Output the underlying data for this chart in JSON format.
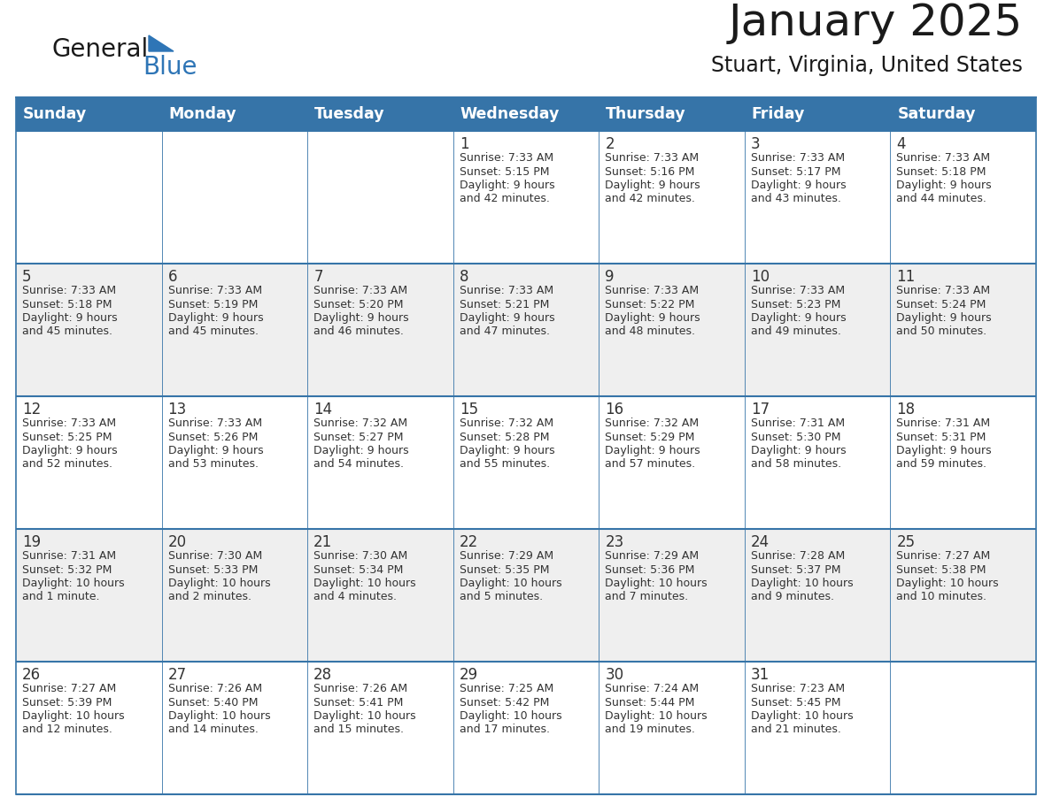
{
  "title": "January 2025",
  "subtitle": "Stuart, Virginia, United States",
  "days_of_week": [
    "Sunday",
    "Monday",
    "Tuesday",
    "Wednesday",
    "Thursday",
    "Friday",
    "Saturday"
  ],
  "header_bg": "#3674a8",
  "header_text": "#FFFFFF",
  "cell_bg_odd": "#FFFFFF",
  "cell_bg_even": "#EFEFEF",
  "border_color_header": "#3674a8",
  "border_color_row": "#3674a8",
  "day_num_color": "#333333",
  "info_color": "#333333",
  "logo_general_color": "#1a1a1a",
  "logo_blue_color": "#2E75B6",
  "calendar": [
    [
      null,
      null,
      null,
      {
        "day": 1,
        "sunrise": "7:33 AM",
        "sunset": "5:15 PM",
        "daylight": "9 hours and 42 minutes."
      },
      {
        "day": 2,
        "sunrise": "7:33 AM",
        "sunset": "5:16 PM",
        "daylight": "9 hours and 42 minutes."
      },
      {
        "day": 3,
        "sunrise": "7:33 AM",
        "sunset": "5:17 PM",
        "daylight": "9 hours and 43 minutes."
      },
      {
        "day": 4,
        "sunrise": "7:33 AM",
        "sunset": "5:18 PM",
        "daylight": "9 hours and 44 minutes."
      }
    ],
    [
      {
        "day": 5,
        "sunrise": "7:33 AM",
        "sunset": "5:18 PM",
        "daylight": "9 hours and 45 minutes."
      },
      {
        "day": 6,
        "sunrise": "7:33 AM",
        "sunset": "5:19 PM",
        "daylight": "9 hours and 45 minutes."
      },
      {
        "day": 7,
        "sunrise": "7:33 AM",
        "sunset": "5:20 PM",
        "daylight": "9 hours and 46 minutes."
      },
      {
        "day": 8,
        "sunrise": "7:33 AM",
        "sunset": "5:21 PM",
        "daylight": "9 hours and 47 minutes."
      },
      {
        "day": 9,
        "sunrise": "7:33 AM",
        "sunset": "5:22 PM",
        "daylight": "9 hours and 48 minutes."
      },
      {
        "day": 10,
        "sunrise": "7:33 AM",
        "sunset": "5:23 PM",
        "daylight": "9 hours and 49 minutes."
      },
      {
        "day": 11,
        "sunrise": "7:33 AM",
        "sunset": "5:24 PM",
        "daylight": "9 hours and 50 minutes."
      }
    ],
    [
      {
        "day": 12,
        "sunrise": "7:33 AM",
        "sunset": "5:25 PM",
        "daylight": "9 hours and 52 minutes."
      },
      {
        "day": 13,
        "sunrise": "7:33 AM",
        "sunset": "5:26 PM",
        "daylight": "9 hours and 53 minutes."
      },
      {
        "day": 14,
        "sunrise": "7:32 AM",
        "sunset": "5:27 PM",
        "daylight": "9 hours and 54 minutes."
      },
      {
        "day": 15,
        "sunrise": "7:32 AM",
        "sunset": "5:28 PM",
        "daylight": "9 hours and 55 minutes."
      },
      {
        "day": 16,
        "sunrise": "7:32 AM",
        "sunset": "5:29 PM",
        "daylight": "9 hours and 57 minutes."
      },
      {
        "day": 17,
        "sunrise": "7:31 AM",
        "sunset": "5:30 PM",
        "daylight": "9 hours and 58 minutes."
      },
      {
        "day": 18,
        "sunrise": "7:31 AM",
        "sunset": "5:31 PM",
        "daylight": "9 hours and 59 minutes."
      }
    ],
    [
      {
        "day": 19,
        "sunrise": "7:31 AM",
        "sunset": "5:32 PM",
        "daylight": "10 hours and 1 minute."
      },
      {
        "day": 20,
        "sunrise": "7:30 AM",
        "sunset": "5:33 PM",
        "daylight": "10 hours and 2 minutes."
      },
      {
        "day": 21,
        "sunrise": "7:30 AM",
        "sunset": "5:34 PM",
        "daylight": "10 hours and 4 minutes."
      },
      {
        "day": 22,
        "sunrise": "7:29 AM",
        "sunset": "5:35 PM",
        "daylight": "10 hours and 5 minutes."
      },
      {
        "day": 23,
        "sunrise": "7:29 AM",
        "sunset": "5:36 PM",
        "daylight": "10 hours and 7 minutes."
      },
      {
        "day": 24,
        "sunrise": "7:28 AM",
        "sunset": "5:37 PM",
        "daylight": "10 hours and 9 minutes."
      },
      {
        "day": 25,
        "sunrise": "7:27 AM",
        "sunset": "5:38 PM",
        "daylight": "10 hours and 10 minutes."
      }
    ],
    [
      {
        "day": 26,
        "sunrise": "7:27 AM",
        "sunset": "5:39 PM",
        "daylight": "10 hours and 12 minutes."
      },
      {
        "day": 27,
        "sunrise": "7:26 AM",
        "sunset": "5:40 PM",
        "daylight": "10 hours and 14 minutes."
      },
      {
        "day": 28,
        "sunrise": "7:26 AM",
        "sunset": "5:41 PM",
        "daylight": "10 hours and 15 minutes."
      },
      {
        "day": 29,
        "sunrise": "7:25 AM",
        "sunset": "5:42 PM",
        "daylight": "10 hours and 17 minutes."
      },
      {
        "day": 30,
        "sunrise": "7:24 AM",
        "sunset": "5:44 PM",
        "daylight": "10 hours and 19 minutes."
      },
      {
        "day": 31,
        "sunrise": "7:23 AM",
        "sunset": "5:45 PM",
        "daylight": "10 hours and 21 minutes."
      },
      null
    ]
  ]
}
